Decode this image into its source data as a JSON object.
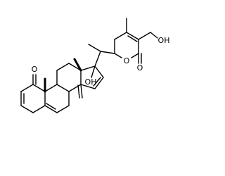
{
  "molecule": {
    "labels": {
      "ketone": "O",
      "hydroxyl": "OH",
      "ring_oxygen": "O",
      "carbonyl": "O",
      "hydroxymethyl": "OH"
    }
  }
}
